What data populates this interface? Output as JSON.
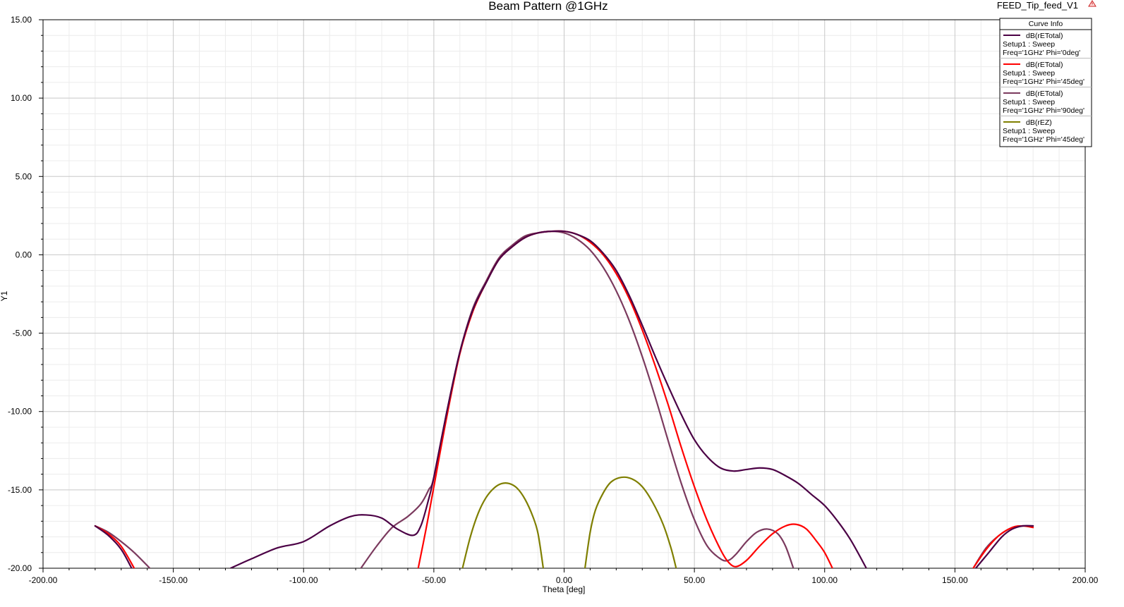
{
  "chart_data": {
    "type": "line",
    "title": "Beam Pattern @1GHz",
    "design_name": "FEED_Tip_feed_V1",
    "xlabel": "Theta [deg]",
    "ylabel": "Y1",
    "xlim": [
      -200,
      200
    ],
    "ylim": [
      -20,
      15
    ],
    "x_major_step": 50,
    "y_major_step": 5,
    "x_ticks": [
      "-200.00",
      "-150.00",
      "-100.00",
      "-50.00",
      "0.00",
      "50.00",
      "100.00",
      "150.00",
      "200.00"
    ],
    "y_ticks": [
      "15.00",
      "10.00",
      "5.00",
      "0.00",
      "-5.00",
      "-10.00",
      "-15.00",
      "-20.00"
    ],
    "grid": true,
    "legend": {
      "title": "Curve Info",
      "placement": "top-right",
      "entries": [
        {
          "line1": "dB(rETotal)",
          "line2": "Setup1 : Sweep",
          "line3": "Freq='1GHz' Phi='0deg'",
          "color": "#4b0045"
        },
        {
          "line1": "dB(rETotal)",
          "line2": "Setup1 : Sweep",
          "line3": "Freq='1GHz' Phi='45deg'",
          "color": "#ff0000"
        },
        {
          "line1": "dB(rETotal)",
          "line2": "Setup1 : Sweep",
          "line3": "Freq='1GHz' Phi='90deg'",
          "color": "#7b3a5e"
        },
        {
          "line1": "dB(rEZ)",
          "line2": "Setup1 : Sweep",
          "line3": "Freq='1GHz' Phi='45deg'",
          "color": "#7f7f00"
        }
      ]
    },
    "series": [
      {
        "color": "#4b0045",
        "segments": [
          [
            [
              -180,
              -17.3
            ],
            [
              -175,
              -17.9
            ],
            [
              -170,
              -18.8
            ],
            [
              -166,
              -20
            ]
          ],
          [
            [
              -128,
              -20
            ],
            [
              -120,
              -19.4
            ],
            [
              -110,
              -18.7
            ],
            [
              -100,
              -18.3
            ],
            [
              -90,
              -17.3
            ],
            [
              -82,
              -16.7
            ],
            [
              -76,
              -16.6
            ],
            [
              -70,
              -16.8
            ],
            [
              -64,
              -17.5
            ],
            [
              -58,
              -17.9
            ],
            [
              -55,
              -17.3
            ],
            [
              -52,
              -15.6
            ],
            [
              -50,
              -14.2
            ],
            [
              -45,
              -10.0
            ],
            [
              -40,
              -6.2
            ],
            [
              -35,
              -3.5
            ],
            [
              -30,
              -1.8
            ],
            [
              -25,
              -0.3
            ],
            [
              -20,
              0.5
            ],
            [
              -15,
              1.1
            ],
            [
              -10,
              1.4
            ],
            [
              -5,
              1.5
            ],
            [
              0,
              1.5
            ],
            [
              5,
              1.3
            ],
            [
              10,
              0.9
            ],
            [
              15,
              0.1
            ],
            [
              20,
              -1.0
            ],
            [
              25,
              -2.6
            ],
            [
              30,
              -4.5
            ],
            [
              35,
              -6.5
            ],
            [
              40,
              -8.4
            ],
            [
              45,
              -10.2
            ],
            [
              50,
              -11.8
            ],
            [
              55,
              -12.9
            ],
            [
              60,
              -13.6
            ],
            [
              65,
              -13.8
            ],
            [
              70,
              -13.7
            ],
            [
              75,
              -13.6
            ],
            [
              80,
              -13.7
            ],
            [
              85,
              -14.1
            ],
            [
              90,
              -14.6
            ],
            [
              95,
              -15.3
            ],
            [
              100,
              -16.0
            ],
            [
              105,
              -17.0
            ],
            [
              110,
              -18.2
            ],
            [
              116,
              -20
            ]
          ],
          [
            [
              158,
              -20
            ],
            [
              163,
              -19.0
            ],
            [
              168,
              -18.0
            ],
            [
              172,
              -17.5
            ],
            [
              176,
              -17.3
            ],
            [
              180,
              -17.3
            ]
          ]
        ]
      },
      {
        "color": "#ff0000",
        "segments": [
          [
            [
              -180,
              -17.3
            ],
            [
              -175,
              -17.8
            ],
            [
              -170,
              -18.6
            ],
            [
              -165,
              -20
            ]
          ],
          [
            [
              -56,
              -20
            ],
            [
              -53,
              -17.5
            ],
            [
              -50,
              -14.8
            ],
            [
              -45,
              -10.3
            ],
            [
              -40,
              -6.3
            ],
            [
              -35,
              -3.6
            ],
            [
              -30,
              -1.8
            ],
            [
              -25,
              -0.3
            ],
            [
              -20,
              0.5
            ],
            [
              -15,
              1.1
            ],
            [
              -10,
              1.4
            ],
            [
              -5,
              1.5
            ],
            [
              0,
              1.5
            ],
            [
              5,
              1.3
            ],
            [
              10,
              0.8
            ],
            [
              15,
              0.0
            ],
            [
              20,
              -1.2
            ],
            [
              25,
              -2.8
            ],
            [
              30,
              -4.8
            ],
            [
              35,
              -7.1
            ],
            [
              40,
              -9.6
            ],
            [
              45,
              -12.3
            ],
            [
              50,
              -14.8
            ],
            [
              55,
              -17.0
            ],
            [
              60,
              -18.8
            ],
            [
              63,
              -19.6
            ],
            [
              66,
              -19.9
            ],
            [
              70,
              -19.5
            ],
            [
              75,
              -18.6
            ],
            [
              80,
              -17.8
            ],
            [
              85,
              -17.3
            ],
            [
              89,
              -17.2
            ],
            [
              93,
              -17.5
            ],
            [
              97,
              -18.3
            ],
            [
              100,
              -19.0
            ],
            [
              103,
              -20
            ]
          ],
          [
            [
              157,
              -20
            ],
            [
              162,
              -18.8
            ],
            [
              167,
              -17.9
            ],
            [
              172,
              -17.4
            ],
            [
              176,
              -17.3
            ],
            [
              180,
              -17.4
            ]
          ]
        ]
      },
      {
        "color": "#7b3a5e",
        "segments": [
          [
            [
              -180,
              -17.3
            ],
            [
              -175,
              -17.7
            ],
            [
              -170,
              -18.3
            ],
            [
              -165,
              -19.0
            ],
            [
              -159,
              -20
            ]
          ],
          [
            [
              -78,
              -20
            ],
            [
              -72,
              -18.6
            ],
            [
              -66,
              -17.4
            ],
            [
              -60,
              -16.7
            ],
            [
              -55,
              -15.9
            ],
            [
              -52,
              -15.0
            ],
            [
              -50,
              -14.2
            ],
            [
              -45,
              -10.0
            ],
            [
              -40,
              -6.2
            ],
            [
              -35,
              -3.4
            ],
            [
              -30,
              -1.7
            ],
            [
              -25,
              -0.2
            ],
            [
              -20,
              0.6
            ],
            [
              -15,
              1.2
            ],
            [
              -10,
              1.4
            ],
            [
              -5,
              1.5
            ],
            [
              0,
              1.4
            ],
            [
              5,
              1.0
            ],
            [
              10,
              0.3
            ],
            [
              15,
              -0.8
            ],
            [
              20,
              -2.3
            ],
            [
              25,
              -4.2
            ],
            [
              30,
              -6.5
            ],
            [
              35,
              -9.1
            ],
            [
              40,
              -11.9
            ],
            [
              45,
              -14.6
            ],
            [
              50,
              -16.9
            ],
            [
              55,
              -18.6
            ],
            [
              60,
              -19.4
            ],
            [
              63,
              -19.5
            ],
            [
              66,
              -19.1
            ],
            [
              70,
              -18.3
            ],
            [
              74,
              -17.7
            ],
            [
              78,
              -17.5
            ],
            [
              82,
              -17.8
            ],
            [
              85,
              -18.6
            ],
            [
              88,
              -20
            ]
          ],
          [
            [
              157,
              -20
            ],
            [
              162,
              -18.7
            ],
            [
              167,
              -17.9
            ],
            [
              172,
              -17.4
            ],
            [
              176,
              -17.3
            ],
            [
              180,
              -17.3
            ]
          ]
        ]
      },
      {
        "color": "#7f7f00",
        "segments": [
          [
            [
              -39,
              -20
            ],
            [
              -36,
              -18.0
            ],
            [
              -33,
              -16.5
            ],
            [
              -30,
              -15.5
            ],
            [
              -27,
              -14.9
            ],
            [
              -24,
              -14.6
            ],
            [
              -21,
              -14.6
            ],
            [
              -18,
              -14.9
            ],
            [
              -15,
              -15.6
            ],
            [
              -12,
              -16.7
            ],
            [
              -10,
              -17.8
            ],
            [
              -8,
              -20
            ]
          ],
          [
            [
              8,
              -20
            ],
            [
              10,
              -17.7
            ],
            [
              12,
              -16.3
            ],
            [
              15,
              -15.2
            ],
            [
              18,
              -14.5
            ],
            [
              22,
              -14.2
            ],
            [
              26,
              -14.3
            ],
            [
              30,
              -14.8
            ],
            [
              34,
              -15.8
            ],
            [
              38,
              -17.2
            ],
            [
              41,
              -18.7
            ],
            [
              43,
              -20
            ]
          ]
        ]
      }
    ]
  }
}
